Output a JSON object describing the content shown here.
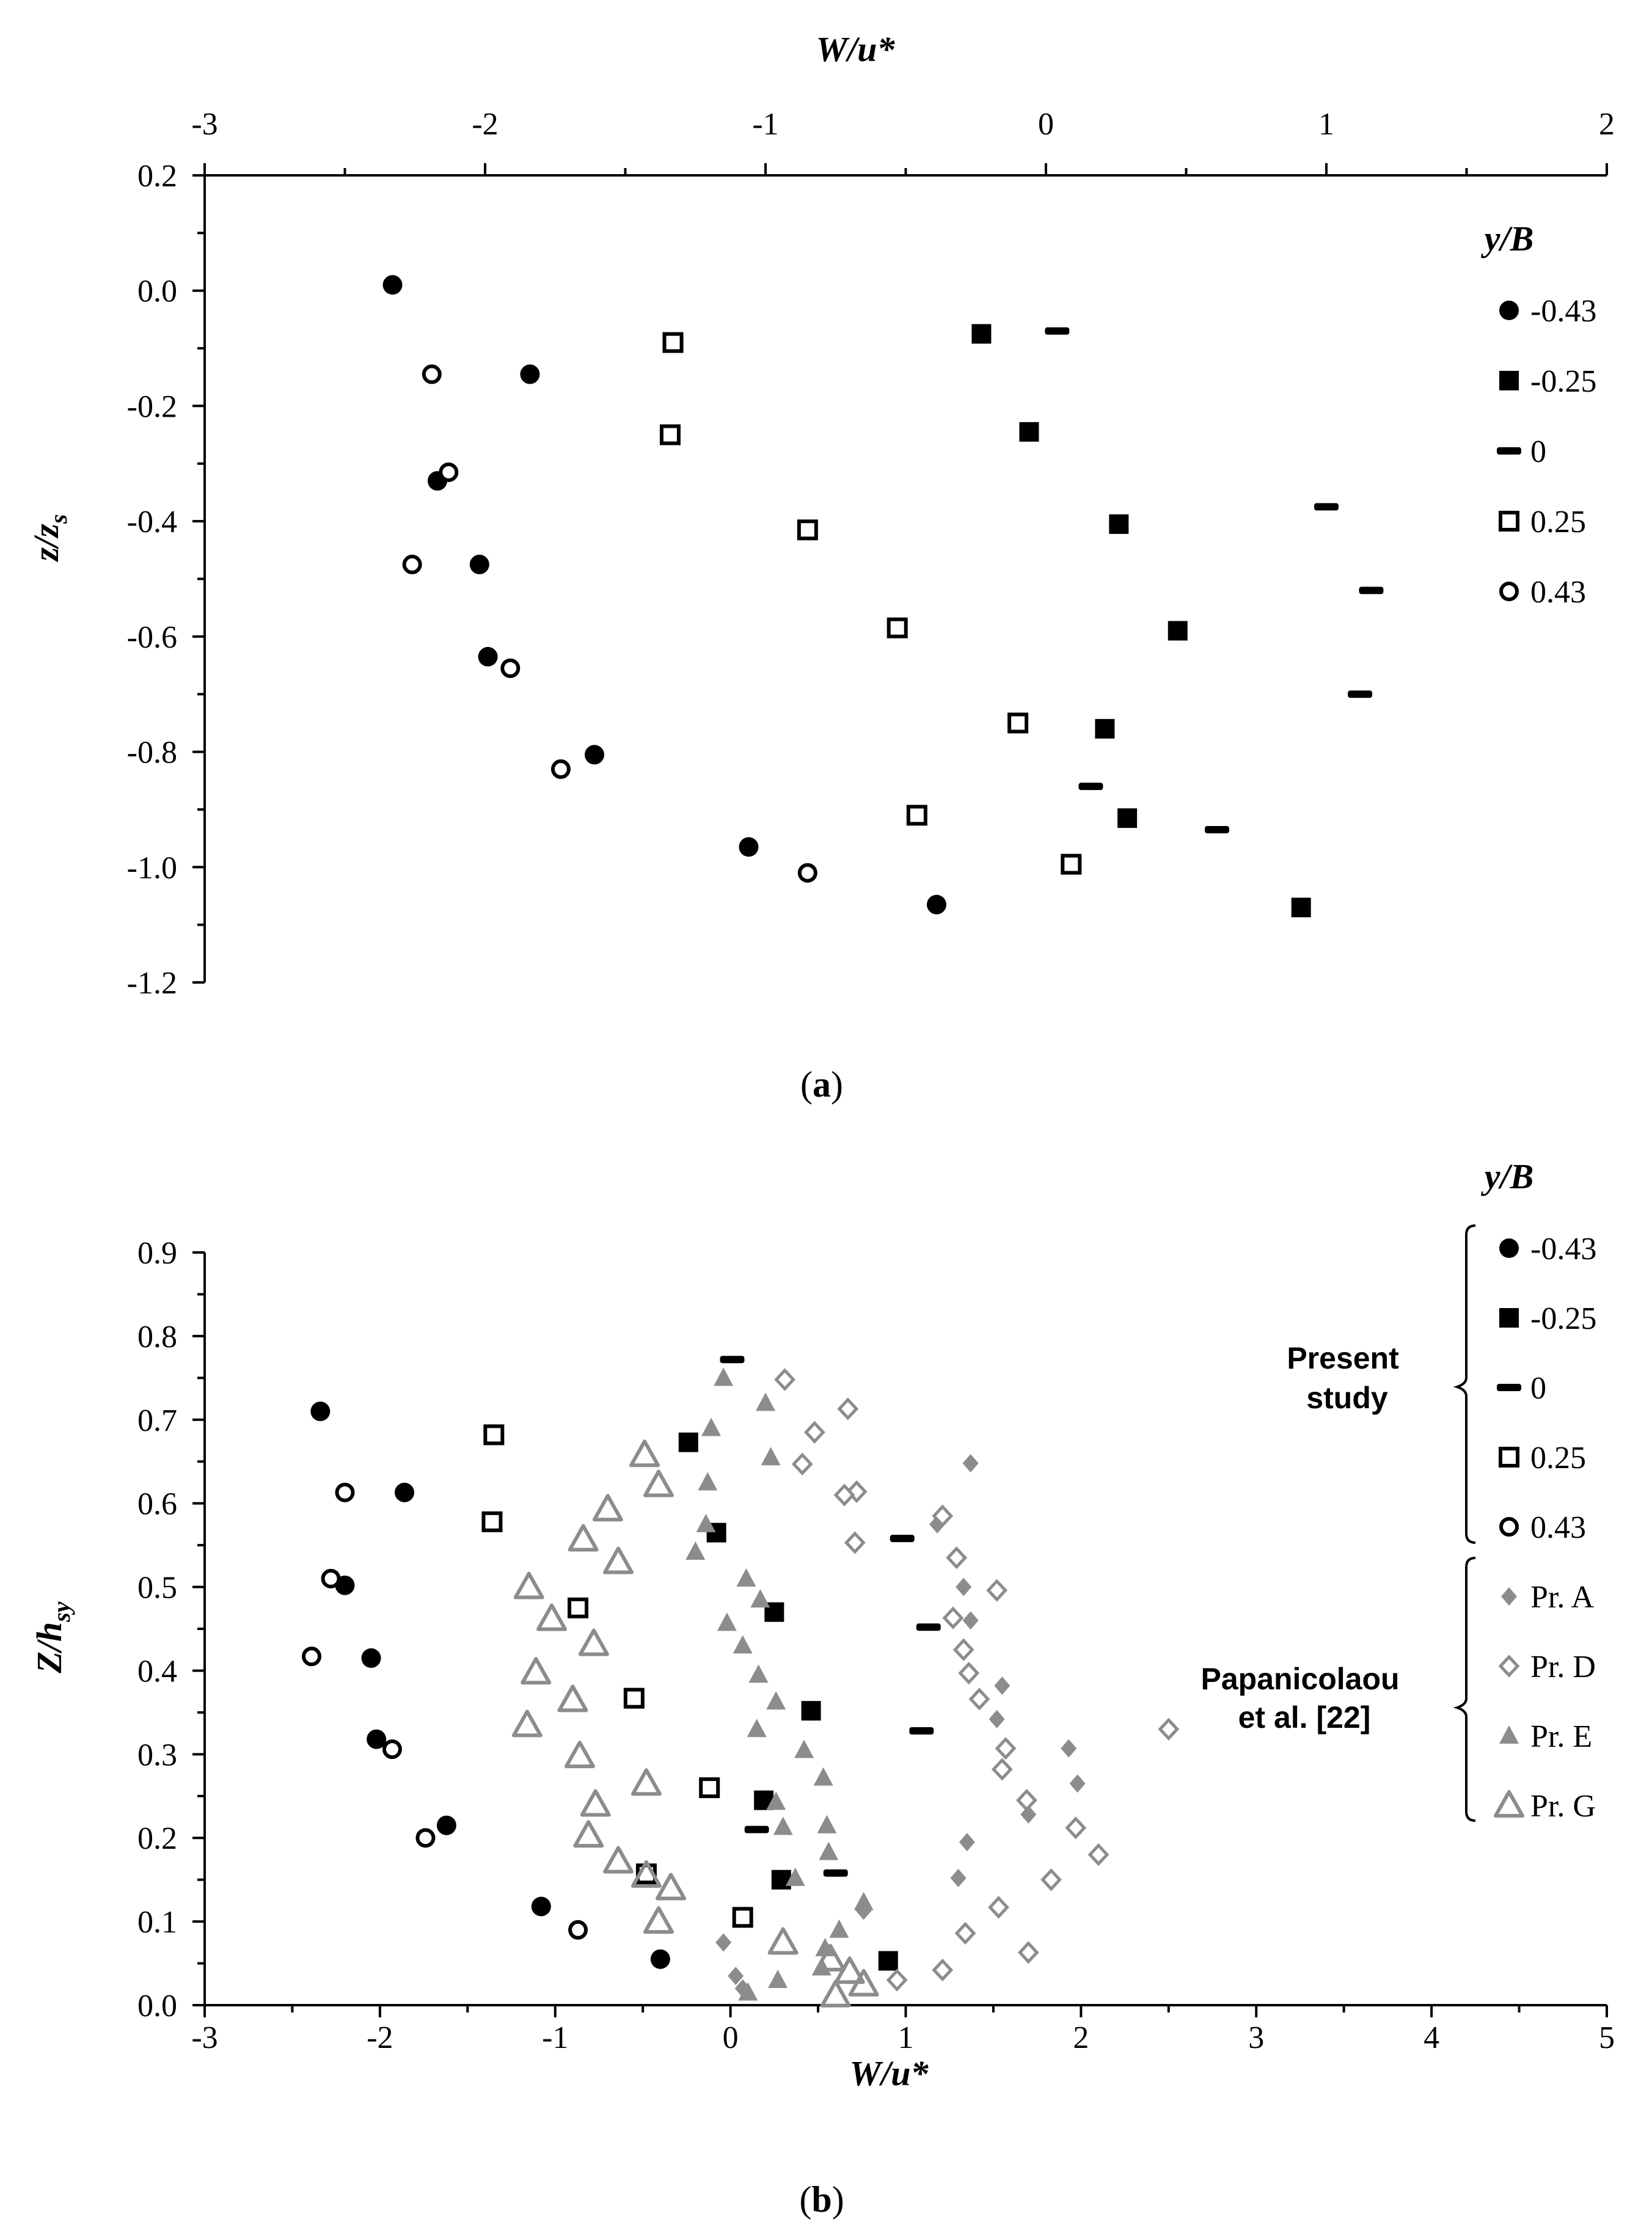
{
  "chart_data": [
    {
      "id": "a",
      "type": "scatter",
      "caption": "a",
      "x_axis_title": "W/u*",
      "x_axis_position": "top",
      "y_axis_title": "z/zs",
      "xlim": [
        -3,
        2
      ],
      "ylim": [
        -1.2,
        0.2
      ],
      "x_ticks": [
        -3,
        -2,
        -1,
        0,
        1,
        2
      ],
      "x_tick_labels": [
        "-3",
        "-2",
        "-1",
        "0",
        "1",
        "2"
      ],
      "y_ticks": [
        0.2,
        0.0,
        -0.2,
        -0.4,
        -0.6,
        -0.8,
        -1.0,
        -1.2
      ],
      "y_tick_labels": [
        "0.2",
        "0.0",
        "-0.2",
        "-0.4",
        "-0.6",
        "-0.8",
        "-1.0",
        "-1.2"
      ],
      "legend_title": "y/B",
      "legend_position": "right",
      "grid": false,
      "series": [
        {
          "name": "-0.43",
          "marker": "filled-circle",
          "color": "#000000",
          "x": [
            -2.33,
            -1.84,
            -2.17,
            -2.02,
            -1.99,
            -1.61,
            -1.06,
            -0.39
          ],
          "y": [
            0.01,
            -0.145,
            -0.33,
            -0.475,
            -0.635,
            -0.805,
            -0.965,
            -1.065
          ]
        },
        {
          "name": "-0.25",
          "marker": "filled-square",
          "color": "#000000",
          "x": [
            -0.23,
            -0.06,
            0.26,
            0.47,
            0.21,
            0.29,
            0.91
          ],
          "y": [
            -0.075,
            -0.245,
            -0.405,
            -0.59,
            -0.76,
            -0.915,
            -1.07
          ]
        },
        {
          "name": "0",
          "marker": "dash",
          "color": "#000000",
          "x": [
            0.04,
            1.0,
            1.16,
            1.12,
            0.16,
            0.61
          ],
          "y": [
            -0.07,
            -0.375,
            -0.52,
            -0.7,
            -0.86,
            -0.935
          ]
        },
        {
          "name": "0.25",
          "marker": "open-square",
          "color": "#000000",
          "x": [
            -1.33,
            -1.34,
            -0.85,
            -0.53,
            -0.1,
            -0.46,
            0.09
          ],
          "y": [
            -0.09,
            -0.25,
            -0.415,
            -0.585,
            -0.75,
            -0.91,
            -0.995
          ]
        },
        {
          "name": "0.43",
          "marker": "open-circle",
          "color": "#000000",
          "x": [
            -2.19,
            -2.13,
            -2.26,
            -1.91,
            -1.73,
            -0.85
          ],
          "y": [
            -0.145,
            -0.315,
            -0.475,
            -0.655,
            -0.83,
            -1.01
          ]
        }
      ]
    },
    {
      "id": "b",
      "type": "scatter",
      "caption": "b",
      "x_axis_title": "W/u*",
      "x_axis_position": "bottom",
      "y_axis_title": "Z/hsy",
      "xlim": [
        -3,
        5
      ],
      "ylim": [
        0.0,
        0.9
      ],
      "x_ticks": [
        -3,
        -2,
        -1,
        0,
        1,
        2,
        3,
        4,
        5
      ],
      "x_tick_labels": [
        "-3",
        "-2",
        "-1",
        "0",
        "1",
        "2",
        "3",
        "4",
        "5"
      ],
      "y_ticks": [
        0.0,
        0.1,
        0.2,
        0.3,
        0.4,
        0.5,
        0.6,
        0.7,
        0.8,
        0.9
      ],
      "y_tick_labels": [
        "0.0",
        "0.1",
        "0.2",
        "0.3",
        "0.4",
        "0.5",
        "0.6",
        "0.7",
        "0.8",
        "0.9"
      ],
      "legend_title": "y/B",
      "legend_position": "right",
      "legend_groups": [
        {
          "label_lines": [
            "Present",
            "study"
          ],
          "series": [
            "-0.43",
            "-0.25",
            "0",
            "0.25",
            "0.43"
          ]
        },
        {
          "label_lines": [
            "Papanicolaou",
            "et al. [22]"
          ],
          "series": [
            "Pr. A",
            "Pr. D",
            "Pr. E",
            "Pr. G"
          ]
        }
      ],
      "grid": false,
      "series": [
        {
          "name": "-0.43",
          "marker": "filled-circle",
          "color": "#000000",
          "x": [
            -2.34,
            -1.86,
            -2.2,
            -2.05,
            -2.02,
            -1.62,
            -1.08,
            -0.4
          ],
          "y": [
            0.71,
            0.613,
            0.502,
            0.415,
            0.318,
            0.215,
            0.118,
            0.055
          ]
        },
        {
          "name": "-0.25",
          "marker": "filled-square",
          "color": "#000000",
          "x": [
            -0.24,
            -0.08,
            0.25,
            0.46,
            0.19,
            0.29,
            0.9
          ],
          "y": [
            0.673,
            0.565,
            0.47,
            0.352,
            0.245,
            0.15,
            0.053
          ]
        },
        {
          "name": "0",
          "marker": "dash",
          "color": "#000000",
          "x": [
            0.01,
            0.98,
            1.13,
            1.09,
            0.15,
            0.6
          ],
          "y": [
            0.772,
            0.558,
            0.452,
            0.328,
            0.21,
            0.158
          ]
        },
        {
          "name": "0.25",
          "marker": "open-square",
          "color": "#000000",
          "x": [
            -1.35,
            -1.36,
            -0.87,
            -0.55,
            -0.12,
            -0.48,
            0.07
          ],
          "y": [
            0.682,
            0.578,
            0.475,
            0.367,
            0.26,
            0.157,
            0.105
          ]
        },
        {
          "name": "0.43",
          "marker": "open-circle",
          "color": "#000000",
          "x": [
            -2.2,
            -2.28,
            -2.39,
            -1.93,
            -1.74,
            -0.87
          ],
          "y": [
            0.613,
            0.51,
            0.417,
            0.306,
            0.2,
            0.09
          ]
        },
        {
          "name": "Pr. A",
          "marker": "filled-diamond",
          "color": "#8c8c8c",
          "x": [
            1.37,
            1.18,
            1.3,
            1.33,
            1.37,
            1.55,
            1.52,
            1.93,
            1.98,
            1.7,
            1.35,
            1.3,
            0.76,
            -0.04,
            0.03,
            0.07
          ],
          "y": [
            0.648,
            0.575,
            0.535,
            0.5,
            0.46,
            0.382,
            0.342,
            0.307,
            0.265,
            0.228,
            0.195,
            0.152,
            0.113,
            0.075,
            0.035,
            0.02
          ]
        },
        {
          "name": "Pr. D",
          "marker": "open-diamond",
          "color": "#8c8c8c",
          "x": [
            0.31,
            0.67,
            0.48,
            0.41,
            0.72,
            0.65,
            1.21,
            0.71,
            1.29,
            1.52,
            1.27,
            1.33,
            1.36,
            1.42,
            2.5,
            1.57,
            1.55,
            1.69,
            1.97,
            2.1,
            1.83,
            1.53,
            1.34,
            1.21,
            1.7,
            0.95
          ],
          "y": [
            0.748,
            0.713,
            0.685,
            0.647,
            0.614,
            0.61,
            0.585,
            0.553,
            0.535,
            0.496,
            0.463,
            0.425,
            0.397,
            0.366,
            0.33,
            0.307,
            0.282,
            0.245,
            0.212,
            0.18,
            0.15,
            0.117,
            0.086,
            0.042,
            0.063,
            0.03
          ]
        },
        {
          "name": "Pr. E",
          "marker": "filled-triangle",
          "color": "#8c8c8c",
          "x": [
            -0.04,
            -0.11,
            0.2,
            -0.13,
            0.23,
            -0.14,
            -0.2,
            0.09,
            0.17,
            -0.02,
            0.07,
            0.16,
            0.26,
            0.42,
            0.15,
            0.26,
            0.53,
            0.3,
            0.55,
            0.56,
            0.37,
            0.76,
            0.62,
            0.54,
            0.52,
            0.27,
            0.1
          ],
          "y": [
            0.75,
            0.69,
            0.72,
            0.625,
            0.655,
            0.575,
            0.542,
            0.51,
            0.485,
            0.457,
            0.43,
            0.395,
            0.363,
            0.305,
            0.33,
            0.243,
            0.272,
            0.213,
            0.215,
            0.183,
            0.152,
            0.123,
            0.09,
            0.068,
            0.045,
            0.03,
            0.015
          ]
        },
        {
          "name": "Pr. G",
          "marker": "open-triangle",
          "color": "#8c8c8c",
          "x": [
            -0.49,
            -0.41,
            -0.7,
            -0.84,
            -0.64,
            -1.15,
            -1.02,
            -0.78,
            -1.11,
            -0.9,
            -1.16,
            -0.86,
            -0.48,
            -0.77,
            -0.81,
            -0.64,
            -0.48,
            -0.34,
            -0.41,
            0.3,
            0.57,
            0.68,
            0.76,
            0.6
          ],
          "y": [
            0.658,
            0.622,
            0.593,
            0.557,
            0.53,
            0.5,
            0.462,
            0.432,
            0.398,
            0.365,
            0.335,
            0.298,
            0.265,
            0.24,
            0.203,
            0.172,
            0.155,
            0.14,
            0.1,
            0.075,
            0.055,
            0.04,
            0.025,
            0.012
          ]
        }
      ]
    }
  ]
}
